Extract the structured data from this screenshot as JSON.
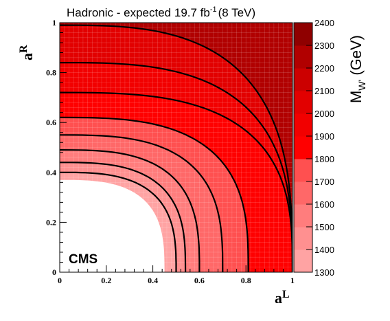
{
  "chart_data": {
    "type": "heatmap",
    "title": "Hadronic - expected  19.7 fb",
    "title_sup": "-1",
    "title_suffix": "(8 TeV)",
    "xlabel": "a",
    "xlabel_sup": "L",
    "ylabel": "a",
    "ylabel_sup": "R",
    "zlabel": "M",
    "zlabel_sub": "W'",
    "zlabel_suffix": " (GeV)",
    "annotation": "CMS",
    "xlim": [
      0,
      1
    ],
    "ylim": [
      0,
      1
    ],
    "zlim": [
      1300,
      2400
    ],
    "x_ticks": [
      "0",
      "0.2",
      "0.4",
      "0.6",
      "0.8",
      "1"
    ],
    "y_ticks": [
      "0",
      "0.2",
      "0.4",
      "0.6",
      "0.8",
      "1"
    ],
    "z_ticks": [
      "1300",
      "1400",
      "1500",
      "1600",
      "1700",
      "1800",
      "1900",
      "2000",
      "2100",
      "2200",
      "2300",
      "2400"
    ],
    "grid": true,
    "excluded_region": {
      "description": "below 1300 GeV (white)",
      "ay_at_aL_0": 0.37,
      "aL_at_aR_0": 0.45
    },
    "contours": [
      {
        "level": 1400,
        "ay_at_aL_0": 0.4,
        "aL_at_aR_0": 0.5
      },
      {
        "level": 1500,
        "ay_at_aL_0": 0.44,
        "aL_at_aR_0": 0.54
      },
      {
        "level": 1600,
        "ay_at_aL_0": 0.49,
        "aL_at_aR_0": 0.6
      },
      {
        "level": 1700,
        "ay_at_aL_0": 0.55,
        "aL_at_aR_0": 0.7
      },
      {
        "level": 1800,
        "ay_at_aL_0": 0.62,
        "aL_at_aR_0": 0.81
      },
      {
        "level": 1900,
        "ay_at_aL_0": 0.72,
        "aL_at_aR_0": 1.0
      },
      {
        "level": 2000,
        "ay_at_aL_0": 0.84,
        "aL_at_aR_0": 1.0
      },
      {
        "level": 2100,
        "ay_at_aL_0": 0.99,
        "aL_at_aR_0": 1.0
      }
    ],
    "colors": {
      "1300": "#ffa3a3",
      "1400": "#ff9090",
      "1500": "#ff7d7d",
      "1600": "#ff6868",
      "1700": "#ff5050",
      "1800": "#ff0000",
      "1900": "#f20000",
      "2000": "#e20000",
      "2100": "#cc0000",
      "2200": "#b10000",
      "2300": "#8f0000",
      "2400": "#6e0000"
    }
  }
}
